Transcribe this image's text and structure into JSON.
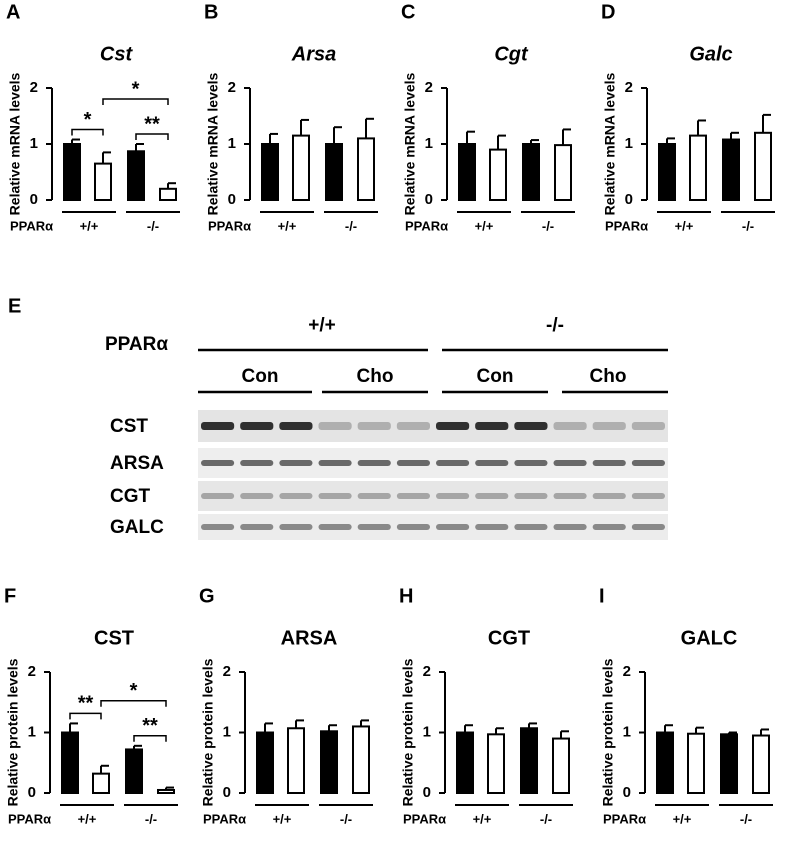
{
  "chart_data": [
    {
      "type": "bar",
      "panel": "A",
      "title": "Cst",
      "italic": true,
      "ylabel": "Relative mRNA levels",
      "group_label": "PPARα",
      "categories": [
        "+/+",
        "-/-"
      ],
      "series": [
        {
          "color": "#000000",
          "values": [
            1.0,
            0.87
          ],
          "errors": [
            0.08,
            0.13
          ]
        },
        {
          "color": "#ffffff",
          "values": [
            0.65,
            0.2
          ],
          "errors": [
            0.2,
            0.1
          ]
        }
      ],
      "ylim": [
        0,
        2
      ],
      "yticks": [
        0,
        1,
        2
      ],
      "annotations": [
        {
          "text": "*",
          "bars": [
            0,
            1
          ]
        },
        {
          "text": "**",
          "bars": [
            2,
            3
          ]
        },
        {
          "text": "*",
          "bars": [
            1,
            3
          ]
        }
      ]
    },
    {
      "type": "bar",
      "panel": "B",
      "title": "Arsa",
      "italic": true,
      "ylabel": "Relative mRNA levels",
      "group_label": "PPARα",
      "categories": [
        "+/+",
        "-/-"
      ],
      "series": [
        {
          "color": "#000000",
          "values": [
            1.0,
            1.0
          ],
          "errors": [
            0.18,
            0.3
          ]
        },
        {
          "color": "#ffffff",
          "values": [
            1.15,
            1.1
          ],
          "errors": [
            0.28,
            0.35
          ]
        }
      ],
      "ylim": [
        0,
        2
      ],
      "yticks": [
        0,
        1,
        2
      ]
    },
    {
      "type": "bar",
      "panel": "C",
      "title": "Cgt",
      "italic": true,
      "ylabel": "Relative mRNA levels",
      "group_label": "PPARα",
      "categories": [
        "+/+",
        "-/-"
      ],
      "series": [
        {
          "color": "#000000",
          "values": [
            1.0,
            1.0
          ],
          "errors": [
            0.22,
            0.07
          ]
        },
        {
          "color": "#ffffff",
          "values": [
            0.9,
            0.98
          ],
          "errors": [
            0.25,
            0.28
          ]
        }
      ],
      "ylim": [
        0,
        2
      ],
      "yticks": [
        0,
        1,
        2
      ]
    },
    {
      "type": "bar",
      "panel": "D",
      "title": "Galc",
      "italic": true,
      "ylabel": "Relative mRNA levels",
      "group_label": "PPARα",
      "categories": [
        "+/+",
        "-/-"
      ],
      "series": [
        {
          "color": "#000000",
          "values": [
            1.0,
            1.08
          ],
          "errors": [
            0.1,
            0.12
          ]
        },
        {
          "color": "#ffffff",
          "values": [
            1.15,
            1.2
          ],
          "errors": [
            0.27,
            0.32
          ]
        }
      ],
      "ylim": [
        0,
        2
      ],
      "yticks": [
        0,
        1,
        2
      ]
    },
    {
      "type": "bar",
      "panel": "F",
      "title": "CST",
      "italic": false,
      "ylabel": "Relative protein levels",
      "group_label": "PPARα",
      "categories": [
        "+/+",
        "-/-"
      ],
      "series": [
        {
          "color": "#000000",
          "values": [
            1.0,
            0.72
          ],
          "errors": [
            0.15,
            0.06
          ]
        },
        {
          "color": "#ffffff",
          "values": [
            0.32,
            0.05
          ],
          "errors": [
            0.13,
            0.04
          ]
        }
      ],
      "ylim": [
        0,
        2
      ],
      "yticks": [
        0,
        1,
        2
      ],
      "annotations": [
        {
          "text": "**",
          "bars": [
            0,
            1
          ]
        },
        {
          "text": "**",
          "bars": [
            2,
            3
          ]
        },
        {
          "text": "*",
          "bars": [
            1,
            3
          ]
        }
      ]
    },
    {
      "type": "bar",
      "panel": "G",
      "title": "ARSA",
      "italic": false,
      "ylabel": "Relative protein levels",
      "group_label": "PPARα",
      "categories": [
        "+/+",
        "-/-"
      ],
      "series": [
        {
          "color": "#000000",
          "values": [
            1.0,
            1.02
          ],
          "errors": [
            0.15,
            0.1
          ]
        },
        {
          "color": "#ffffff",
          "values": [
            1.07,
            1.1
          ],
          "errors": [
            0.13,
            0.1
          ]
        }
      ],
      "ylim": [
        0,
        2
      ],
      "yticks": [
        0,
        1,
        2
      ]
    },
    {
      "type": "bar",
      "panel": "H",
      "title": "CGT",
      "italic": false,
      "ylabel": "Relative protein levels",
      "group_label": "PPARα",
      "categories": [
        "+/+",
        "-/-"
      ],
      "series": [
        {
          "color": "#000000",
          "values": [
            1.0,
            1.07
          ],
          "errors": [
            0.12,
            0.08
          ]
        },
        {
          "color": "#ffffff",
          "values": [
            0.97,
            0.9
          ],
          "errors": [
            0.1,
            0.12
          ]
        }
      ],
      "ylim": [
        0,
        2
      ],
      "yticks": [
        0,
        1,
        2
      ]
    },
    {
      "type": "bar",
      "panel": "I",
      "title": "GALC",
      "italic": false,
      "ylabel": "Relative protein levels",
      "group_label": "PPARα",
      "categories": [
        "+/+",
        "-/-"
      ],
      "series": [
        {
          "color": "#000000",
          "values": [
            1.0,
            0.97
          ],
          "errors": [
            0.12,
            0.03
          ]
        },
        {
          "color": "#ffffff",
          "values": [
            0.98,
            0.95
          ],
          "errors": [
            0.1,
            0.1
          ]
        }
      ],
      "ylim": [
        0,
        2
      ],
      "yticks": [
        0,
        1,
        2
      ]
    }
  ],
  "blot": {
    "panel": "E",
    "group_label": "PPARα",
    "genotypes": [
      "+/+",
      "-/-"
    ],
    "treatments": [
      "Con",
      "Cho",
      "Con",
      "Cho"
    ],
    "rows": [
      "CST",
      "ARSA",
      "CGT",
      "GALC"
    ]
  }
}
